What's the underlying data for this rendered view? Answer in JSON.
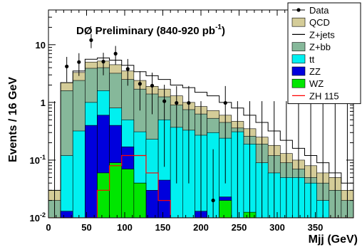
{
  "chart_data": {
    "type": "bar",
    "stacked": true,
    "yscale": "log",
    "xlim": [
      0,
      400
    ],
    "ylim": [
      0.01,
      40
    ],
    "bin_width": 16,
    "bin_edges_start": [
      0,
      16,
      32,
      48,
      64,
      80,
      96,
      112,
      128,
      144,
      160,
      176,
      192,
      208,
      224,
      240,
      256,
      272,
      288,
      304,
      320,
      336,
      352,
      368,
      384
    ],
    "xlabel": "Mjj (GeV)",
    "ylabel": "Events / 16 GeV",
    "annotation": "DØ Preliminary (840-920 pb",
    "annotation_sup": "-1",
    "annotation_close": ")",
    "x_ticks": [
      "0",
      "50",
      "100",
      "150",
      "200",
      "250",
      "300",
      "350"
    ],
    "x_tick_values": [
      0,
      50,
      100,
      150,
      200,
      250,
      300,
      350
    ],
    "y_ticks": [
      {
        "base": "10",
        "exp": "-2",
        "value": 0.01
      },
      {
        "base": "10",
        "exp": "-1",
        "value": 0.1
      },
      {
        "base": "1",
        "exp": "",
        "value": 1
      },
      {
        "base": "10",
        "exp": "",
        "value": 10
      }
    ],
    "legend": [
      {
        "key": "data",
        "label": "Data",
        "style": "marker"
      },
      {
        "key": "qcd",
        "label": "QCD",
        "style": "fill"
      },
      {
        "key": "zjets",
        "label": "Z+jets",
        "style": "line"
      },
      {
        "key": "zbb",
        "label": "Z+bb",
        "style": "fill"
      },
      {
        "key": "tt",
        "label": "tt",
        "style": "fill"
      },
      {
        "key": "zz",
        "label": "ZZ",
        "style": "fill"
      },
      {
        "key": "wz",
        "label": "WZ",
        "style": "fill"
      },
      {
        "key": "zh",
        "label": "ZH 115",
        "style": "line"
      }
    ],
    "colors": {
      "data": "#000000",
      "qcd": "#d4cc98",
      "zjets": "#000000",
      "zbb": "#86b89a",
      "tt": "#00f0f0",
      "zz": "#0000dd",
      "wz": "#00e600",
      "zh": "#ff0000"
    },
    "series": [
      {
        "key": "wz",
        "cumulative": [
          0.01,
          0.01,
          0.01,
          0.01,
          0.06,
          0.09,
          0.07,
          0.04,
          0.01,
          0.01,
          0.01,
          0.01,
          0.01,
          0.01,
          0.02,
          0.01,
          0.0125,
          0.01,
          0.01,
          0.01,
          0.01,
          0.01,
          0.01,
          0.01,
          0.01
        ]
      },
      {
        "key": "zz",
        "cumulative": [
          0.01,
          0.013,
          0.01,
          0.4,
          0.6,
          0.4,
          0.17,
          0.04,
          0.03,
          0.045,
          0.01,
          0.01,
          0.013,
          0.01,
          0.023,
          0.01,
          0.01,
          0.01,
          0.01,
          0.01,
          0.01,
          0.01,
          0.01,
          0.01,
          0.01
        ]
      },
      {
        "key": "tt",
        "cumulative": [
          0.01,
          0.12,
          0.32,
          1.0,
          1.6,
          0.8,
          0.5,
          0.31,
          0.23,
          0.5,
          0.37,
          0.33,
          0.27,
          0.3,
          0.24,
          0.31,
          0.19,
          0.09,
          0.06,
          0.05,
          0.05,
          0.04,
          0.02,
          0.01,
          0.01
        ]
      },
      {
        "key": "zbb",
        "cumulative": [
          0.02,
          1.6,
          2.4,
          3.9,
          4.0,
          3.2,
          2.5,
          1.7,
          1.4,
          1.25,
          0.9,
          0.75,
          0.63,
          0.53,
          0.45,
          0.36,
          0.26,
          0.19,
          0.12,
          0.09,
          0.07,
          0.05,
          0.04,
          0.03,
          0.02
        ]
      },
      {
        "key": "qcd",
        "cumulative": [
          0.03,
          2.2,
          3.3,
          5.0,
          5.2,
          4.5,
          3.5,
          2.4,
          1.9,
          1.7,
          1.3,
          1.0,
          0.85,
          0.72,
          0.6,
          0.47,
          0.35,
          0.25,
          0.18,
          0.13,
          0.1,
          0.08,
          0.06,
          0.05,
          0.03
        ]
      },
      {
        "key": "zjets",
        "cumulative": [
          0.03,
          2.2,
          3.5,
          5.6,
          5.9,
          5.4,
          4.4,
          3.4,
          2.9,
          2.5,
          2.0,
          1.8,
          1.5,
          1.3,
          1.0,
          0.8,
          0.6,
          0.45,
          0.32,
          0.22,
          0.16,
          0.12,
          0.09,
          0.06,
          0.04
        ]
      }
    ],
    "zh_values": [
      0.01,
      0.01,
      0.01,
      0.01,
      0.03,
      0.08,
      0.12,
      0.12,
      0.06,
      0.02,
      0.01,
      0.01,
      0.01,
      0.01,
      0.01,
      0.01,
      0.01,
      0.01,
      0.01,
      0.01,
      0.01,
      0.01,
      0.01,
      0.01,
      0.01
    ],
    "data_points": [
      {
        "x": 8,
        "y": 0.009
      },
      {
        "x": 24,
        "y": 4.2
      },
      {
        "x": 40,
        "y": 5.0
      },
      {
        "x": 56,
        "y": 12.0
      },
      {
        "x": 72,
        "y": 5.1
      },
      {
        "x": 88,
        "y": 7.0
      },
      {
        "x": 104,
        "y": 3.8
      },
      {
        "x": 120,
        "y": 2.1
      },
      {
        "x": 136,
        "y": 1.95
      },
      {
        "x": 152,
        "y": 1.05
      },
      {
        "x": 168,
        "y": 0.98
      },
      {
        "x": 184,
        "y": 0.98
      },
      {
        "x": 200,
        "y": 0.009
      },
      {
        "x": 216,
        "y": 0.02
      },
      {
        "x": 232,
        "y": 0.98
      },
      {
        "x": 248,
        "y": 0.009
      },
      {
        "x": 264,
        "y": 0.009
      },
      {
        "x": 280,
        "y": 0.009
      },
      {
        "x": 296,
        "y": 0.009
      },
      {
        "x": 312,
        "y": 0.009
      },
      {
        "x": 328,
        "y": 0.009
      },
      {
        "x": 344,
        "y": 0.009
      },
      {
        "x": 360,
        "y": 0.009
      },
      {
        "x": 376,
        "y": 0.009
      },
      {
        "x": 392,
        "y": 0.009
      }
    ],
    "grid": false,
    "legend_position": "top-right"
  }
}
